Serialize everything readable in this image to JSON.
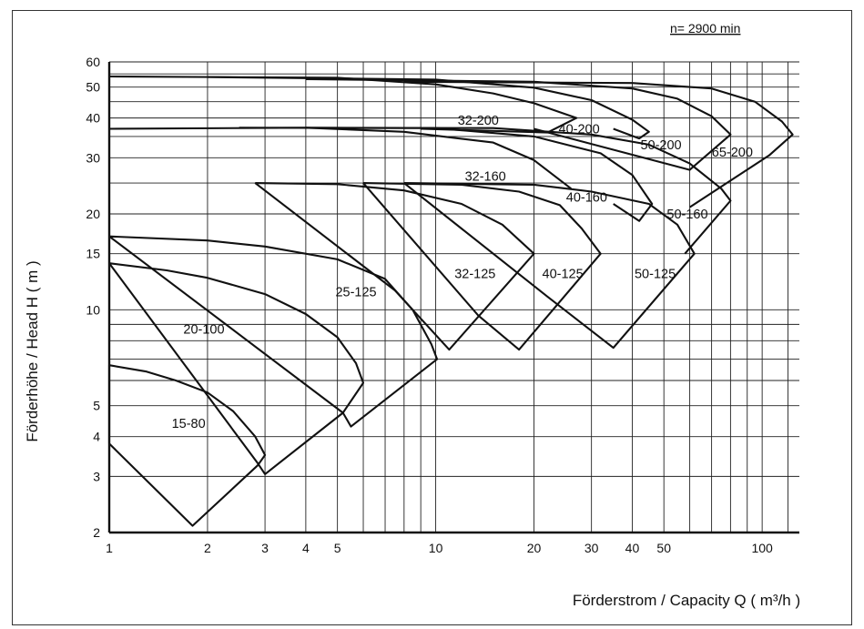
{
  "chart_data": {
    "type": "line",
    "title": "",
    "annotation": "n= 2900 min",
    "xlabel": "Förderstrom / Capacity Q ( m³/h )",
    "ylabel": "Förderhöhe / Head H ( m )",
    "xscale": "log",
    "yscale": "log",
    "xlim": [
      1,
      130
    ],
    "ylim": [
      2,
      60
    ],
    "grid": true,
    "x_ticks": [
      "1",
      "2",
      "3",
      "4",
      "5",
      "10",
      "20",
      "30",
      "40",
      "50",
      "100"
    ],
    "y_ticks": [
      "2",
      "3",
      "4",
      "5",
      "10",
      "15",
      "20",
      "30",
      "40",
      "50",
      "60"
    ],
    "series": [
      {
        "name": "15-80",
        "label": "15-80",
        "label_at": [
          1.75,
          4.4
        ],
        "outline": [
          [
            1.0,
            3.8
          ],
          [
            1.0,
            6.7
          ],
          [
            1.3,
            6.4
          ],
          [
            1.6,
            6.0
          ],
          [
            2.0,
            5.5
          ],
          [
            2.4,
            4.8
          ],
          [
            2.8,
            4.0
          ],
          [
            3.0,
            3.5
          ],
          [
            2.85,
            3.25
          ],
          [
            1.8,
            2.1
          ],
          [
            1.0,
            3.8
          ]
        ]
      },
      {
        "name": "20-100",
        "label": "20-100",
        "label_at": [
          1.95,
          8.7
        ],
        "outline": [
          [
            1.0,
            14.0
          ],
          [
            1.5,
            13.3
          ],
          [
            2.0,
            12.6
          ],
          [
            3.0,
            11.2
          ],
          [
            4.0,
            9.7
          ],
          [
            5.0,
            8.2
          ],
          [
            5.7,
            6.8
          ],
          [
            6.0,
            5.9
          ],
          [
            5.2,
            4.75
          ],
          [
            3.0,
            3.05
          ],
          [
            2.85,
            3.3
          ],
          [
            1.0,
            14.0
          ]
        ]
      },
      {
        "name": "25-125",
        "label": "25-125",
        "label_at": [
          5.7,
          11.4
        ],
        "outline": [
          [
            1.0,
            17.0
          ],
          [
            2.0,
            16.5
          ],
          [
            3.0,
            15.8
          ],
          [
            5.0,
            14.4
          ],
          [
            7.0,
            12.5
          ],
          [
            8.5,
            10.0
          ],
          [
            9.7,
            7.8
          ],
          [
            10.1,
            7.0
          ],
          [
            5.5,
            4.3
          ],
          [
            5.2,
            4.75
          ],
          [
            1.0,
            17.0
          ]
        ]
      },
      {
        "name": "32-125",
        "label": "32-125",
        "label_at": [
          13.2,
          13.0
        ],
        "outline": [
          [
            2.8,
            25.0
          ],
          [
            5.0,
            24.8
          ],
          [
            8.0,
            23.7
          ],
          [
            12.0,
            21.5
          ],
          [
            16.0,
            18.5
          ],
          [
            20.0,
            15.0
          ],
          [
            11.0,
            7.5
          ],
          [
            7.5,
            11.5
          ],
          [
            2.8,
            25.0
          ]
        ]
      },
      {
        "name": "40-125",
        "label": "40-125",
        "label_at": [
          24.5,
          13.0
        ],
        "outline": [
          [
            6.0,
            25.0
          ],
          [
            12.0,
            24.7
          ],
          [
            18.0,
            23.5
          ],
          [
            24.0,
            21.3
          ],
          [
            28.0,
            18.0
          ],
          [
            32.0,
            15.0
          ],
          [
            18.0,
            7.5
          ],
          [
            13.5,
            9.6
          ],
          [
            6.0,
            25.0
          ]
        ]
      },
      {
        "name": "50-125",
        "label": "50-125",
        "label_at": [
          47.0,
          13.0
        ],
        "outline": [
          [
            8.0,
            25.0
          ],
          [
            20.0,
            24.7
          ],
          [
            30.0,
            23.5
          ],
          [
            45.0,
            21.5
          ],
          [
            55.0,
            18.5
          ],
          [
            62.0,
            15.0
          ],
          [
            35.0,
            7.6
          ],
          [
            22.0,
            11.0
          ],
          [
            8.0,
            25.0
          ]
        ]
      },
      {
        "name": "32-160",
        "label": "32-160",
        "label_at": [
          14.2,
          26.3
        ],
        "outline": [
          [
            1.0,
            37.0
          ],
          [
            4.0,
            37.3
          ],
          [
            8.0,
            36.2
          ],
          [
            15.0,
            33.5
          ],
          [
            20.0,
            29.5
          ],
          [
            26.0,
            24.0
          ]
        ]
      },
      {
        "name": "40-160",
        "label": "40-160",
        "label_at": [
          29.0,
          22.6
        ],
        "outline": [
          [
            2.5,
            37.3
          ],
          [
            10.0,
            37.2
          ],
          [
            20.0,
            35.0
          ],
          [
            32.0,
            31.0
          ],
          [
            40.0,
            26.5
          ],
          [
            46.0,
            21.5
          ],
          [
            42.0,
            19.0
          ],
          [
            35.0,
            21.5
          ]
        ]
      },
      {
        "name": "50-160",
        "label": "50-160",
        "label_at": [
          59.0,
          20.0
        ],
        "outline": [
          [
            4.0,
            37.3
          ],
          [
            15.0,
            37.2
          ],
          [
            30.0,
            35.5
          ],
          [
            45.0,
            33.0
          ],
          [
            60.0,
            28.8
          ],
          [
            75.0,
            24.0
          ],
          [
            80.0,
            22.0
          ],
          [
            58.0,
            15.0
          ]
        ]
      },
      {
        "name": "32-200",
        "label": "32-200",
        "label_at": [
          13.5,
          39.4
        ],
        "outline": [
          [
            1.0,
            54.0
          ],
          [
            5.0,
            53.5
          ],
          [
            10.0,
            51.0
          ],
          [
            15.0,
            47.8
          ],
          [
            20.0,
            44.5
          ],
          [
            27.0,
            40.0
          ],
          [
            22.0,
            36.0
          ],
          [
            9.0,
            37.0
          ]
        ]
      },
      {
        "name": "40-200",
        "label": "40-200",
        "label_at": [
          27.5,
          37.0
        ],
        "outline": [
          [
            2.0,
            53.8
          ],
          [
            10.0,
            52.8
          ],
          [
            20.0,
            49.8
          ],
          [
            30.0,
            45.5
          ],
          [
            40.0,
            39.5
          ],
          [
            45.0,
            36.2
          ],
          [
            42.0,
            34.5
          ],
          [
            35.0,
            37.0
          ]
        ]
      },
      {
        "name": "50-200",
        "label": "50-200",
        "label_at": [
          49.0,
          33.0
        ],
        "outline": [
          [
            4.0,
            53.0
          ],
          [
            20.0,
            52.0
          ],
          [
            40.0,
            49.5
          ],
          [
            55.0,
            46.0
          ],
          [
            70.0,
            40.5
          ],
          [
            80.0,
            35.5
          ],
          [
            60.0,
            27.5
          ],
          [
            20.0,
            37.0
          ]
        ]
      },
      {
        "name": "65-200",
        "label": "65-200",
        "label_at": [
          81.0,
          31.3
        ],
        "outline": [
          [
            8.0,
            52.0
          ],
          [
            40.0,
            51.5
          ],
          [
            70.0,
            49.5
          ],
          [
            95.0,
            45.0
          ],
          [
            115.0,
            39.0
          ],
          [
            124.0,
            35.5
          ],
          [
            105.0,
            30.5
          ],
          [
            60.0,
            21.0
          ]
        ]
      }
    ]
  }
}
